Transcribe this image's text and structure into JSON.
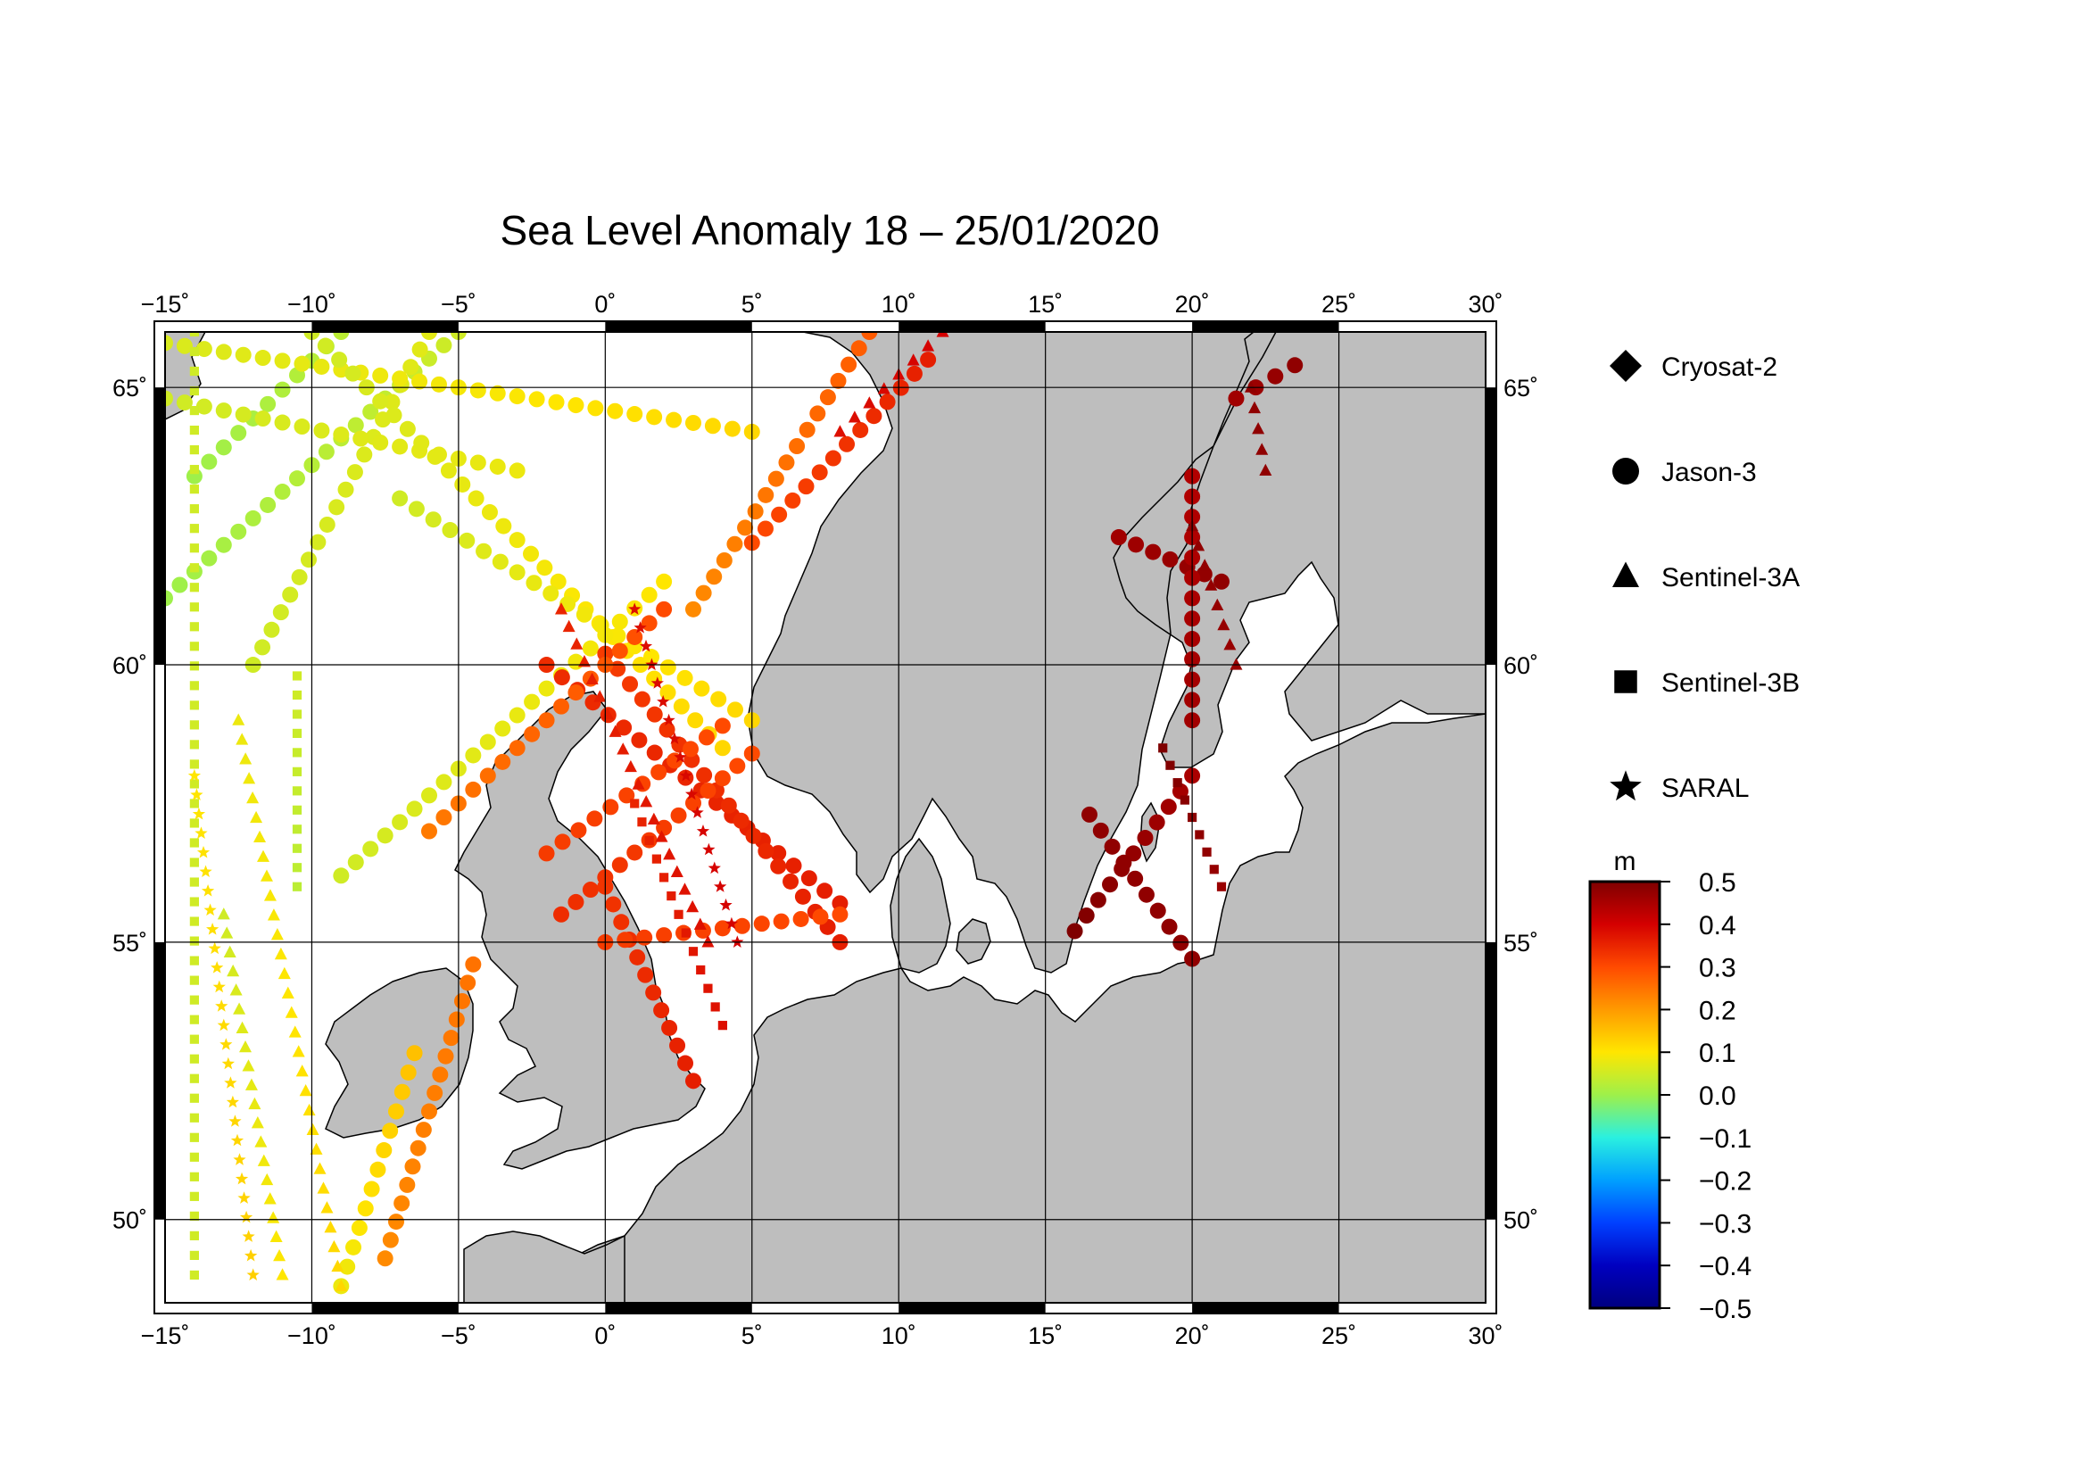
{
  "title": "Sea Level Anomaly 18 – 25/01/2020",
  "map": {
    "lon_range": [
      -15,
      30
    ],
    "lat_range": [
      48.5,
      66
    ],
    "lon_ticks": [
      {
        "value": -15,
        "label": "−15˚"
      },
      {
        "value": -10,
        "label": "−10˚"
      },
      {
        "value": -5,
        "label": "−5˚"
      },
      {
        "value": 0,
        "label": "0˚"
      },
      {
        "value": 5,
        "label": "5˚"
      },
      {
        "value": 10,
        "label": "10˚"
      },
      {
        "value": 15,
        "label": "15˚"
      },
      {
        "value": 20,
        "label": "20˚"
      },
      {
        "value": 25,
        "label": "25˚"
      },
      {
        "value": 30,
        "label": "30˚"
      }
    ],
    "lat_ticks": [
      {
        "value": 65,
        "label": "65˚"
      },
      {
        "value": 60,
        "label": "60˚"
      },
      {
        "value": 55,
        "label": "55˚"
      },
      {
        "value": 50,
        "label": "50˚"
      }
    ],
    "grid": true,
    "land_color": "#bebebe",
    "sea_color": "#ffffff"
  },
  "legend": {
    "placement": "right",
    "items": [
      {
        "label": "Cryosat-2",
        "symbol": "diamond"
      },
      {
        "label": "Jason-3",
        "symbol": "circle"
      },
      {
        "label": "Sentinel-3A",
        "symbol": "triangle"
      },
      {
        "label": "Sentinel-3B",
        "symbol": "square"
      },
      {
        "label": "SARAL",
        "symbol": "star"
      }
    ]
  },
  "colorbar": {
    "unit": "m",
    "range": [
      -0.5,
      0.5
    ],
    "ticks": [
      "0.5",
      "0.4",
      "0.3",
      "0.2",
      "0.1",
      "0.0",
      "−0.1",
      "−0.2",
      "−0.3",
      "−0.4",
      "−0.5"
    ],
    "colors": [
      "#7f0000",
      "#d40000",
      "#ff4a00",
      "#ff9a00",
      "#ffe600",
      "#9ef04a",
      "#2af0e0",
      "#00a0ff",
      "#0040ff",
      "#0000c0",
      "#00007f"
    ]
  },
  "chart_data": {
    "type": "scatter",
    "title": "Sea Level Anomaly 18 – 25/01/2020",
    "xlabel": "",
    "ylabel": "",
    "xlim": [
      -15,
      30
    ],
    "ylim": [
      48.5,
      66
    ],
    "value_unit": "m",
    "value_range": [
      -0.5,
      0.5
    ],
    "tracks": [
      {
        "satellite": "Jason-3",
        "start": [
          -15,
          61.2
        ],
        "end": [
          -5,
          66
        ],
        "value_start": 0.0,
        "value_end": 0.05
      },
      {
        "satellite": "Jason-3",
        "start": [
          -14,
          63.4
        ],
        "end": [
          -9,
          66
        ],
        "value_start": 0.0,
        "value_end": 0.03
      },
      {
        "satellite": "Jason-3",
        "start": [
          -12,
          60
        ],
        "end": [
          -6,
          66
        ],
        "value_start": 0.05,
        "value_end": 0.07
      },
      {
        "satellite": "Jason-3",
        "start": [
          -15,
          64.8
        ],
        "end": [
          -3,
          63.5
        ],
        "value_start": 0.05,
        "value_end": 0.08
      },
      {
        "satellite": "Jason-3",
        "start": [
          -15,
          65.8
        ],
        "end": [
          5,
          64.2
        ],
        "value_start": 0.06,
        "value_end": 0.12
      },
      {
        "satellite": "Jason-3",
        "start": [
          -10,
          66
        ],
        "end": [
          4,
          58.5
        ],
        "value_start": 0.05,
        "value_end": 0.12
      },
      {
        "satellite": "Jason-3",
        "start": [
          -7,
          63
        ],
        "end": [
          5,
          59
        ],
        "value_start": 0.05,
        "value_end": 0.12
      },
      {
        "satellite": "Jason-3",
        "start": [
          -9,
          56.2
        ],
        "end": [
          2,
          61.5
        ],
        "value_start": 0.05,
        "value_end": 0.1
      },
      {
        "satellite": "Jason-3",
        "start": [
          -2,
          60
        ],
        "end": [
          8,
          55.7
        ],
        "value_start": 0.34,
        "value_end": 0.36
      },
      {
        "satellite": "Jason-3",
        "start": [
          0,
          60.2
        ],
        "end": [
          8,
          55.0
        ],
        "value_start": 0.32,
        "value_end": 0.36
      },
      {
        "satellite": "Jason-3",
        "start": [
          -2,
          56.6
        ],
        "end": [
          4,
          58.9
        ],
        "value_start": 0.32,
        "value_end": 0.3
      },
      {
        "satellite": "Jason-3",
        "start": [
          -1.5,
          55.5
        ],
        "end": [
          5,
          58.4
        ],
        "value_start": 0.34,
        "value_end": 0.3
      },
      {
        "satellite": "Jason-3",
        "start": [
          0,
          56
        ],
        "end": [
          3,
          52.5
        ],
        "value_start": 0.33,
        "value_end": 0.36
      },
      {
        "satellite": "Jason-3",
        "start": [
          0,
          55
        ],
        "end": [
          8,
          55.5
        ],
        "value_start": 0.32,
        "value_end": 0.3
      },
      {
        "satellite": "Jason-3",
        "start": [
          -6,
          57
        ],
        "end": [
          2,
          61
        ],
        "value_start": 0.24,
        "value_end": 0.3
      },
      {
        "satellite": "Jason-3",
        "start": [
          -7.5,
          49.3
        ],
        "end": [
          -4.5,
          54.6
        ],
        "value_start": 0.22,
        "value_end": 0.25
      },
      {
        "satellite": "Jason-3",
        "start": [
          -9,
          48.8
        ],
        "end": [
          -6.5,
          53
        ],
        "value_start": 0.08,
        "value_end": 0.15
      },
      {
        "satellite": "Jason-3",
        "start": [
          5,
          62.2
        ],
        "end": [
          11,
          65.5
        ],
        "value_start": 0.3,
        "value_end": 0.36
      },
      {
        "satellite": "Jason-3",
        "start": [
          3,
          61
        ],
        "end": [
          9,
          66
        ],
        "value_start": 0.22,
        "value_end": 0.28
      },
      {
        "satellite": "Jason-3",
        "start": [
          16,
          55.2
        ],
        "end": [
          20,
          58
        ],
        "value_start": 0.5,
        "value_end": 0.45
      },
      {
        "satellite": "Jason-3",
        "start": [
          16.5,
          57.3
        ],
        "end": [
          20,
          54.7
        ],
        "value_start": 0.48,
        "value_end": 0.48
      },
      {
        "satellite": "Jason-3",
        "start": [
          17.5,
          62.3
        ],
        "end": [
          21,
          61.5
        ],
        "value_start": 0.46,
        "value_end": 0.48
      },
      {
        "satellite": "Jason-3",
        "start": [
          20,
          63.4
        ],
        "end": [
          20,
          59
        ],
        "value_start": 0.44,
        "value_end": 0.46
      },
      {
        "satellite": "Jason-3",
        "start": [
          21.5,
          64.8
        ],
        "end": [
          23.5,
          65.4
        ],
        "value_start": 0.46,
        "value_end": 0.48
      },
      {
        "satellite": "Sentinel-3B",
        "start": [
          -14,
          66
        ],
        "end": [
          -14,
          49
        ],
        "value_start": 0.05,
        "value_end": 0.05
      },
      {
        "satellite": "Sentinel-3B",
        "start": [
          -10.5,
          59.8
        ],
        "end": [
          -10.5,
          56
        ],
        "value_start": 0.05,
        "value_end": 0.03
      },
      {
        "satellite": "Sentinel-3B",
        "start": [
          1,
          57.5
        ],
        "end": [
          4,
          53.5
        ],
        "value_start": 0.35,
        "value_end": 0.38
      },
      {
        "satellite": "Sentinel-3B",
        "start": [
          19,
          58.5
        ],
        "end": [
          21,
          56
        ],
        "value_start": 0.5,
        "value_end": 0.47
      },
      {
        "satellite": "Sentinel-3A",
        "start": [
          -13,
          55.5
        ],
        "end": [
          -11,
          49
        ],
        "value_start": 0.05,
        "value_end": 0.1
      },
      {
        "satellite": "Sentinel-3A",
        "start": [
          -12.5,
          59
        ],
        "end": [
          -9,
          48.8
        ],
        "value_start": 0.08,
        "value_end": 0.12
      },
      {
        "satellite": "Sentinel-3A",
        "start": [
          -1.5,
          61
        ],
        "end": [
          3.5,
          55
        ],
        "value_start": 0.35,
        "value_end": 0.38
      },
      {
        "satellite": "Sentinel-3A",
        "start": [
          8,
          64.2
        ],
        "end": [
          11.5,
          66
        ],
        "value_start": 0.38,
        "value_end": 0.4
      },
      {
        "satellite": "Sentinel-3A",
        "start": [
          20,
          62.5
        ],
        "end": [
          21.5,
          60
        ],
        "value_start": 0.48,
        "value_end": 0.47
      },
      {
        "satellite": "Sentinel-3A",
        "start": [
          22,
          65
        ],
        "end": [
          22.5,
          63.5
        ],
        "value_start": 0.48,
        "value_end": 0.48
      },
      {
        "satellite": "SARAL",
        "start": [
          1,
          61
        ],
        "end": [
          4.5,
          55
        ],
        "value_start": 0.38,
        "value_end": 0.4
      },
      {
        "satellite": "SARAL",
        "start": [
          -14,
          58
        ],
        "end": [
          -12,
          49
        ],
        "value_start": 0.1,
        "value_end": 0.13
      }
    ]
  }
}
